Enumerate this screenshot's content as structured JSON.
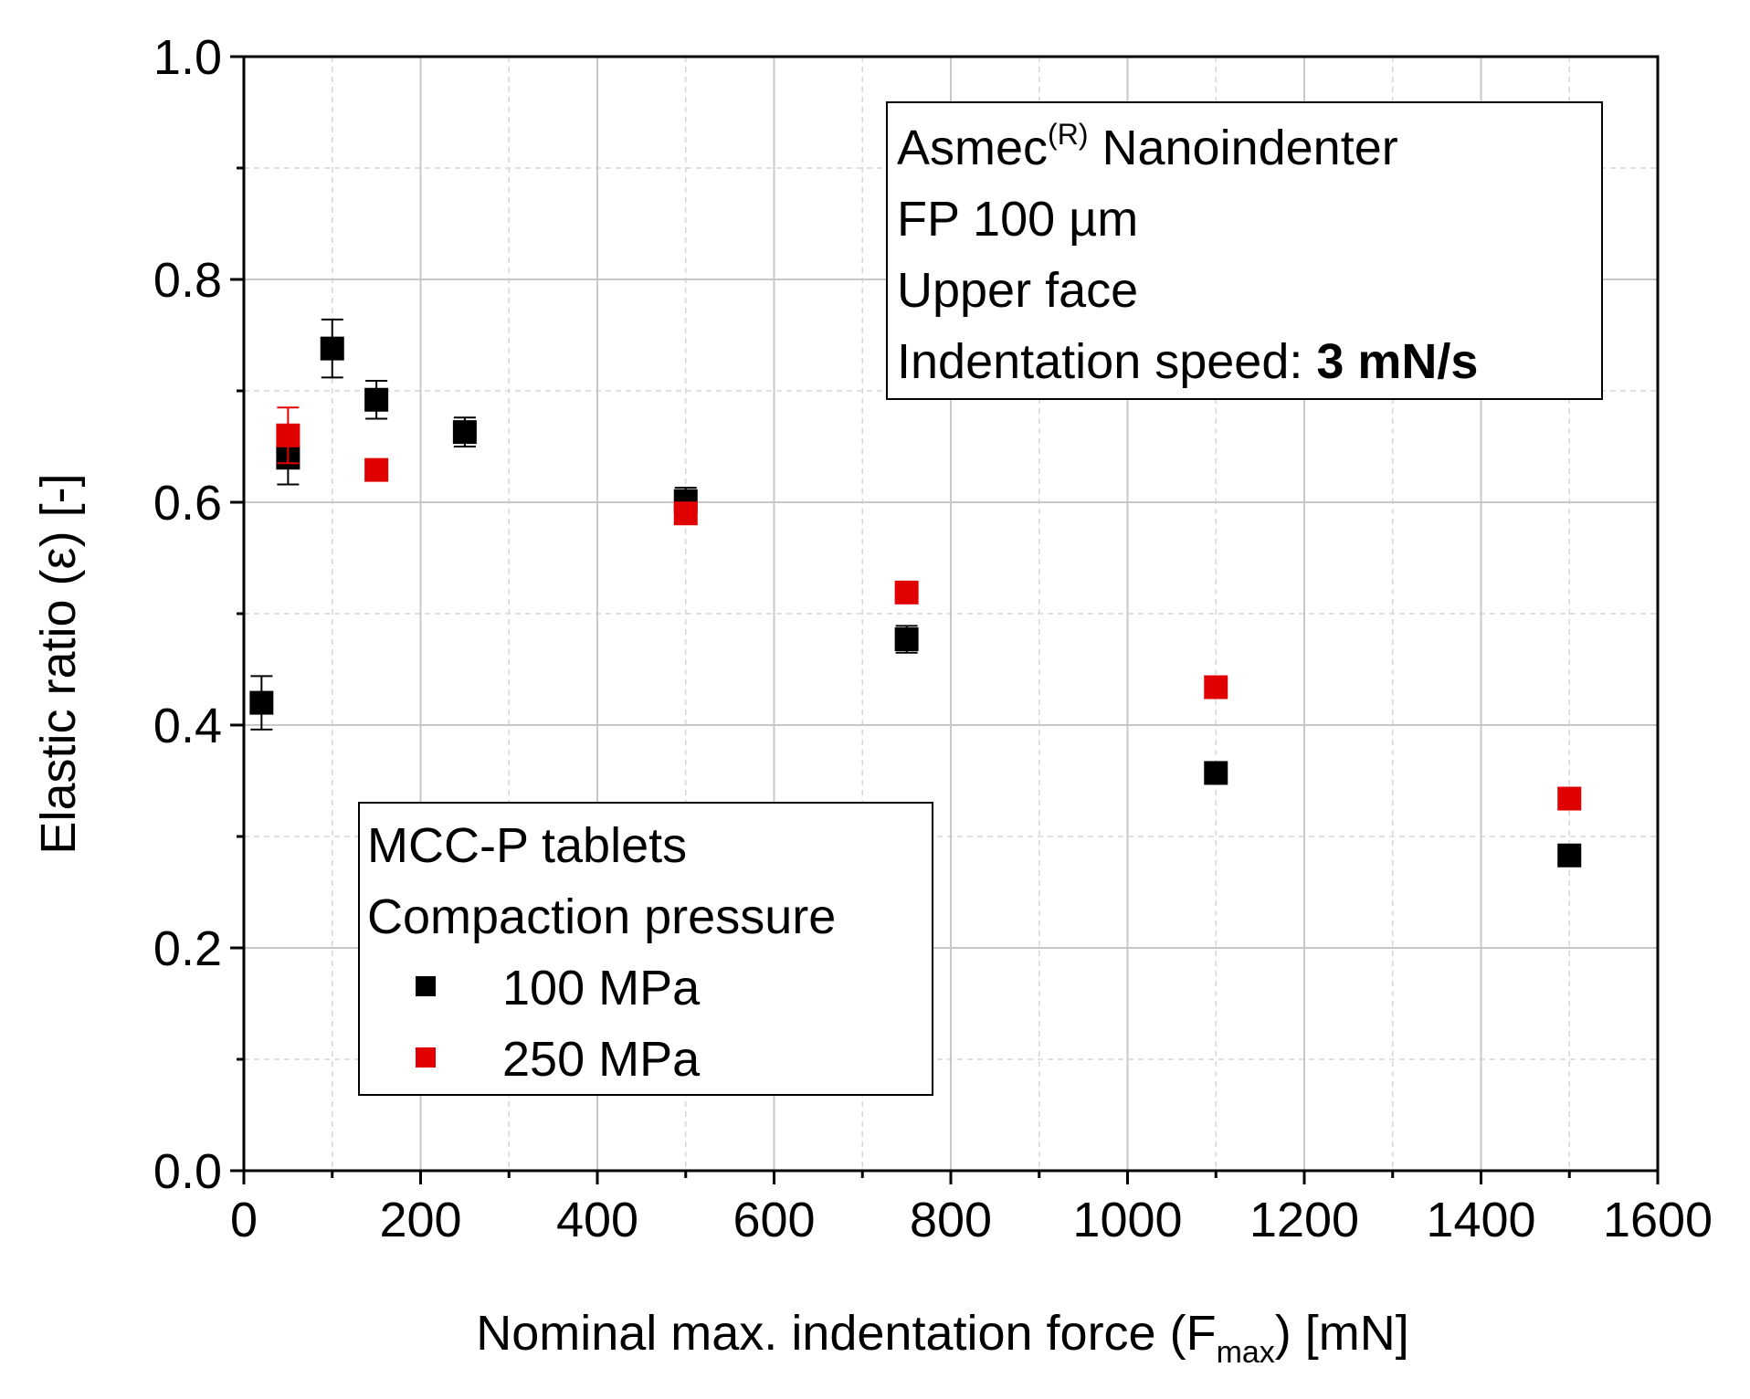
{
  "chart_data": {
    "type": "scatter",
    "xlabel": {
      "main": "Nominal max. indentation force (F",
      "sub": "max",
      "tail": ") [mN]"
    },
    "ylabel": {
      "main": "Elastic ratio (ε) [-]"
    },
    "xlim": [
      0,
      1600
    ],
    "ylim": [
      0.0,
      1.0
    ],
    "x_ticks": [
      0,
      200,
      400,
      600,
      800,
      1000,
      1200,
      1400,
      1600
    ],
    "x_tick_labels": [
      "0",
      "200",
      "400",
      "600",
      "800",
      "1000",
      "1200",
      "1400",
      "1600"
    ],
    "y_ticks": [
      0.0,
      0.2,
      0.4,
      0.6,
      0.8,
      1.0
    ],
    "y_tick_labels": [
      "0.0",
      "0.2",
      "0.4",
      "0.6",
      "0.8",
      "1.0"
    ],
    "grid": true,
    "info_box": {
      "line1_main": "Asmec",
      "line1_sup": "(R)",
      "line1_tail": " Nanoindenter",
      "line2": "FP 100 µm",
      "line3": "Upper face",
      "line4_main": "Indentation speed: ",
      "line4_bold": "3 mN/s"
    },
    "legend": {
      "placement": "bottom-left",
      "title1": "MCC-P tablets",
      "title2": "Compaction pressure"
    },
    "series": [
      {
        "name": "100 MPa",
        "color": "#000000",
        "x": [
          20,
          50,
          100,
          150,
          250,
          500,
          750,
          1100,
          1500
        ],
        "y": [
          0.42,
          0.64,
          0.738,
          0.692,
          0.663,
          0.601,
          0.477,
          0.357,
          0.283
        ],
        "err": [
          0.024,
          0.024,
          0.026,
          0.017,
          0.013,
          0.012,
          0.012,
          0.009,
          0.006
        ]
      },
      {
        "name": "250 MPa",
        "color": "#e00000",
        "x": [
          50,
          150,
          500,
          750,
          1100,
          1500
        ],
        "y": [
          0.66,
          0.629,
          0.59,
          0.519,
          0.434,
          0.334
        ],
        "err": [
          0.025,
          0.008,
          0.006,
          0.004,
          0.004,
          0.003
        ]
      }
    ]
  }
}
